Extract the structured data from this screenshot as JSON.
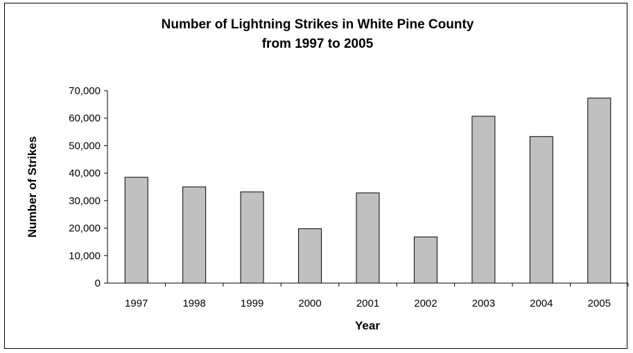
{
  "chart_data": {
    "type": "bar",
    "title": "Number of Lightning Strikes in White Pine County",
    "subtitle": "from 1997 to 2005",
    "xlabel": "Year",
    "ylabel": "Number of Strikes",
    "categories": [
      "1997",
      "1998",
      "1999",
      "2000",
      "2001",
      "2002",
      "2003",
      "2004",
      "2005"
    ],
    "values": [
      38500,
      35000,
      33200,
      19800,
      32800,
      16800,
      60700,
      53300,
      67300
    ],
    "ylim": [
      0,
      70000
    ],
    "yticks": [
      0,
      10000,
      20000,
      30000,
      40000,
      50000,
      60000,
      70000
    ],
    "ytick_labels": [
      "0",
      "10,000",
      "20,000",
      "30,000",
      "40,000",
      "50,000",
      "60,000",
      "70,000"
    ],
    "grid": false,
    "legend": "none",
    "bar_color": "#c0c0c0",
    "bar_edge_color": "#000000"
  }
}
